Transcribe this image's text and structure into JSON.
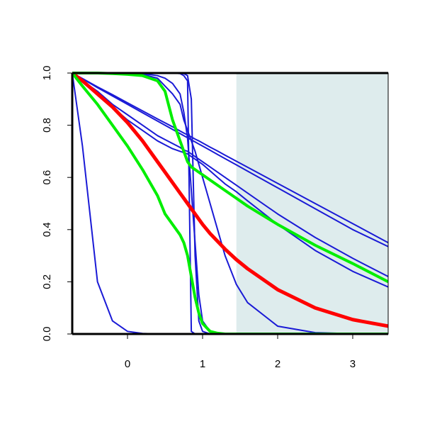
{
  "chart_data": {
    "type": "line",
    "x": [
      -0.736,
      -0.6,
      -0.4,
      -0.2,
      0,
      0.2,
      0.4,
      0.5,
      0.6,
      0.7,
      0.75,
      0.8,
      0.85,
      0.9,
      0.95,
      1,
      1.1,
      1.2,
      1.3,
      1.45,
      1.6,
      2,
      2.5,
      3,
      3.472
    ],
    "xlim": [
      -0.736,
      3.472
    ],
    "ylim": [
      0,
      1
    ],
    "xticks": [
      0,
      1,
      2,
      3
    ],
    "yticks": [
      {
        "value": 0,
        "label": "0.0"
      },
      0.2,
      0.4,
      0.6,
      0.8,
      {
        "value": 1,
        "label": "1.0"
      }
    ],
    "shaded_x": [
      1.45,
      3.472
    ],
    "shade_color": "#deeced",
    "series": [
      {
        "color": "#1a1ad6",
        "width": 2,
        "values": [
          1,
          0.72,
          0.2,
          0.05,
          0.01,
          0.002,
          0,
          0,
          0,
          0,
          0,
          0,
          0,
          0,
          0,
          0,
          0,
          0,
          0,
          0,
          0,
          0,
          0,
          0,
          0
        ]
      },
      {
        "color": "#1a1ad6",
        "width": 2,
        "values": [
          1,
          0.979,
          0.947,
          0.917,
          0.886,
          0.855,
          0.824,
          0.809,
          0.794,
          0.778,
          0.77,
          0.763,
          0.755,
          0.747,
          0.74,
          0.732,
          0.716,
          0.701,
          0.685,
          0.662,
          0.639,
          0.577,
          0.5,
          0.423,
          0.35
        ]
      },
      {
        "color": "#1a1ad6",
        "width": 2,
        "values": [
          1,
          0.978,
          0.944,
          0.912,
          0.88,
          0.848,
          0.816,
          0.8,
          0.784,
          0.768,
          0.76,
          0.752,
          0.744,
          0.736,
          0.728,
          0.72,
          0.704,
          0.688,
          0.672,
          0.648,
          0.624,
          0.56,
          0.48,
          0.4,
          0.335
        ]
      },
      {
        "color": "#1a1ad6",
        "width": 2,
        "values": [
          1,
          0.97,
          0.93,
          0.88,
          0.84,
          0.8,
          0.76,
          0.745,
          0.73,
          0.715,
          0.705,
          0.7,
          0.69,
          0.68,
          0.67,
          0.66,
          0.64,
          0.62,
          0.6,
          0.57,
          0.54,
          0.46,
          0.37,
          0.29,
          0.22
        ]
      },
      {
        "color": "#1a1ad6",
        "width": 2,
        "values": [
          1,
          0.965,
          0.92,
          0.87,
          0.82,
          0.78,
          0.74,
          0.725,
          0.71,
          0.7,
          0.695,
          0.69,
          0.68,
          0.67,
          0.66,
          0.65,
          0.625,
          0.6,
          0.575,
          0.545,
          0.51,
          0.42,
          0.32,
          0.24,
          0.18
        ]
      },
      {
        "color": "#1a1ad6",
        "width": 2,
        "values": [
          1,
          1,
          1,
          1,
          1,
          1,
          1,
          1,
          1,
          0.998,
          0.99,
          0.97,
          0.01,
          0,
          0,
          0,
          0,
          0,
          0,
          0,
          0,
          0,
          0,
          0,
          0
        ]
      },
      {
        "color": "#1a1ad6",
        "width": 2,
        "values": [
          1,
          1,
          1,
          1,
          1,
          1,
          1,
          1,
          1,
          1,
          0.998,
          0.99,
          0.9,
          0.3,
          0.05,
          0.01,
          0,
          0,
          0,
          0,
          0,
          0,
          0,
          0,
          0
        ]
      },
      {
        "color": "#1a1ad6",
        "width": 2,
        "values": [
          1,
          1,
          1,
          1,
          0.999,
          0.998,
          0.99,
          0.98,
          0.96,
          0.92,
          0.85,
          0.75,
          0.55,
          0.35,
          0.15,
          0.05,
          0.01,
          0,
          0,
          0,
          0,
          0,
          0,
          0,
          0
        ]
      },
      {
        "color": "#1a1ad6",
        "width": 2,
        "values": [
          1,
          1,
          1,
          1,
          0.999,
          0.995,
          0.98,
          0.95,
          0.92,
          0.88,
          0.82,
          0.78,
          0.74,
          0.7,
          0.65,
          0.6,
          0.5,
          0.4,
          0.3,
          0.19,
          0.12,
          0.03,
          0.005,
          0.001,
          0
        ]
      },
      {
        "color": "#ff0000",
        "width": 5,
        "values": [
          1,
          0.97,
          0.92,
          0.87,
          0.81,
          0.74,
          0.66,
          0.62,
          0.58,
          0.54,
          0.52,
          0.5,
          0.48,
          0.46,
          0.44,
          0.42,
          0.385,
          0.355,
          0.325,
          0.285,
          0.25,
          0.17,
          0.1,
          0.055,
          0.03
        ]
      },
      {
        "color": "#00ee00",
        "width": 4,
        "values": [
          1,
          1,
          1,
          0.998,
          0.995,
          0.99,
          0.97,
          0.93,
          0.82,
          0.74,
          0.7,
          0.66,
          0.64,
          0.63,
          0.62,
          0.61,
          0.59,
          0.57,
          0.55,
          0.52,
          0.49,
          0.42,
          0.34,
          0.27,
          0.2
        ]
      },
      {
        "color": "#00ee00",
        "width": 4,
        "values": [
          1,
          0.95,
          0.88,
          0.8,
          0.72,
          0.63,
          0.53,
          0.46,
          0.42,
          0.38,
          0.35,
          0.3,
          0.22,
          0.14,
          0.08,
          0.04,
          0.01,
          0.003,
          0,
          0,
          0,
          0,
          0,
          0,
          0
        ]
      }
    ]
  }
}
